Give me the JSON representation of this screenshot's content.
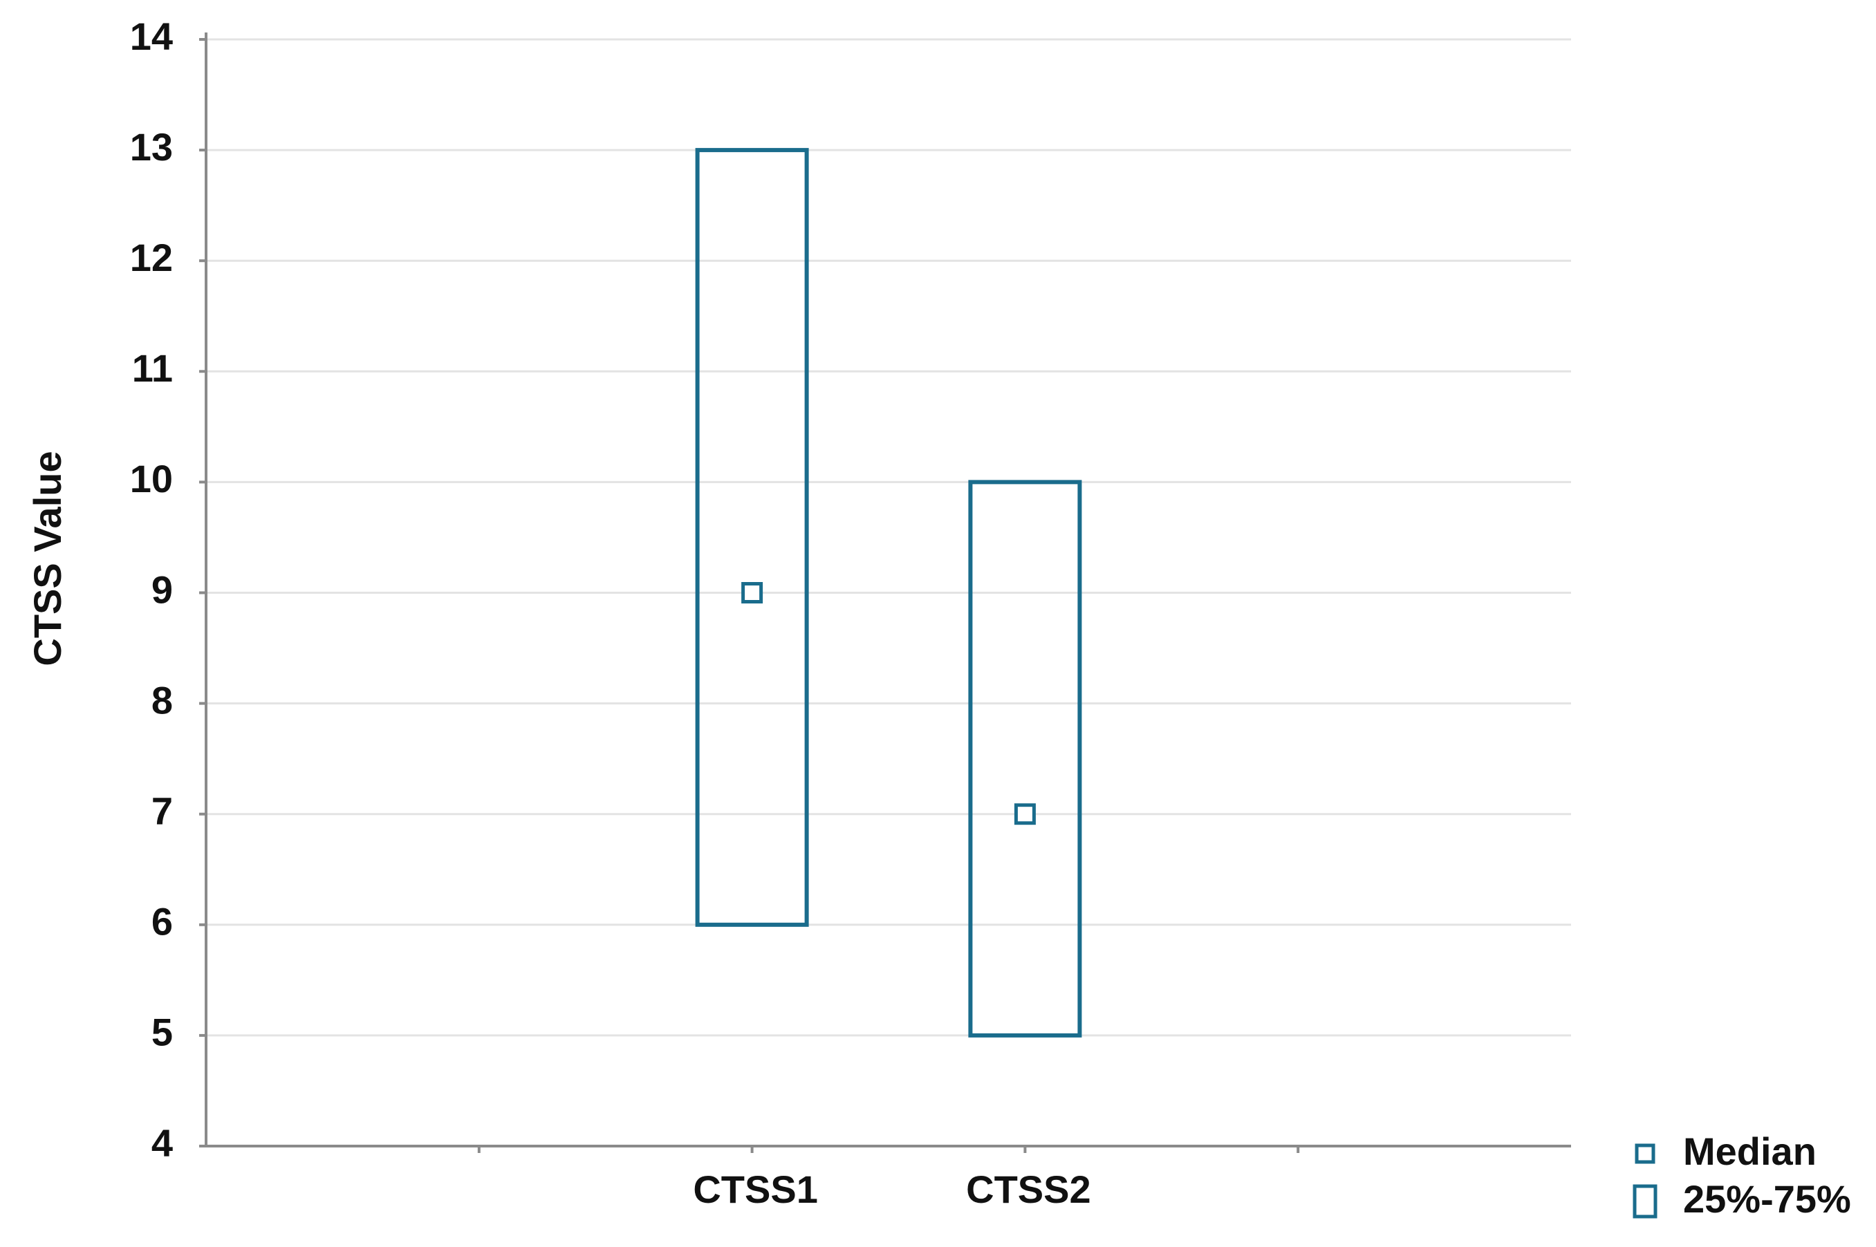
{
  "chart_data": {
    "type": "box",
    "y_label": "CTSS Value",
    "categories": [
      null,
      "CTSS1",
      "CTSS2",
      null
    ],
    "median": [
      null,
      9,
      7,
      null
    ],
    "q1": [
      null,
      6,
      5,
      null
    ],
    "q3": [
      null,
      13,
      10,
      null
    ],
    "legend_labels": [
      "Median",
      "25%-75%"
    ],
    "color": "#1a6c8c",
    "ylim": [
      4,
      14
    ],
    "yticks": [
      4,
      5,
      6,
      7,
      8,
      9,
      10,
      11,
      12,
      13,
      14
    ],
    "grid": true
  }
}
